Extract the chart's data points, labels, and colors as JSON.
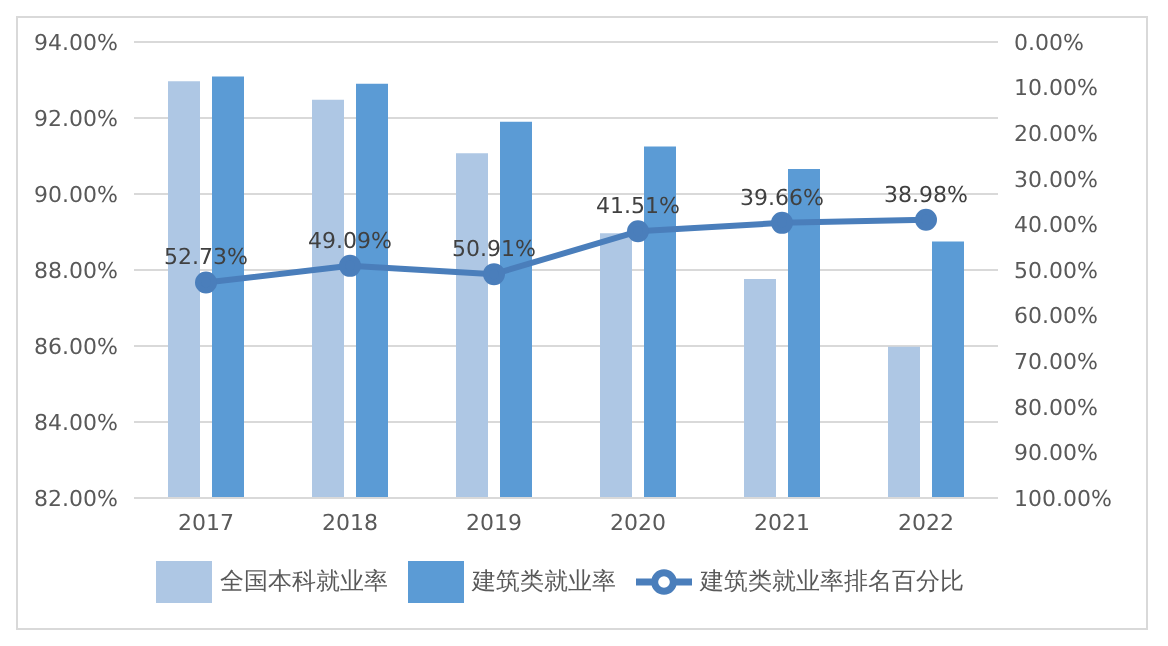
{
  "chart_data": {
    "type": "bar",
    "categories": [
      "2017",
      "2018",
      "2019",
      "2020",
      "2021",
      "2022"
    ],
    "series": [
      {
        "name": "全国本科就业率",
        "color": "#aec7e4",
        "values": [
          92.97,
          92.48,
          91.07,
          88.97,
          87.76,
          85.98
        ]
      },
      {
        "name": "建筑类就业率",
        "color": "#5b9bd5",
        "values": [
          93.09,
          92.9,
          91.9,
          91.25,
          90.66,
          88.75
        ]
      },
      {
        "name": "建筑类就业率排名百分比",
        "type": "line",
        "axis": "y2",
        "color": "#4a7ebb",
        "values": [
          52.73,
          49.09,
          50.91,
          41.51,
          39.66,
          38.98
        ],
        "value_labels": [
          "52.73%",
          "49.09%",
          "50.91%",
          "41.51%",
          "39.66%",
          "38.98%"
        ],
        "marker": "circle",
        "line_style": "solid"
      }
    ],
    "ylim": [
      82,
      94
    ],
    "yticks": [
      {
        "value": 82,
        "label": "82.00%"
      },
      {
        "value": 84,
        "label": "84.00%"
      },
      {
        "value": 86,
        "label": "86.00%"
      },
      {
        "value": 88,
        "label": "88.00%"
      },
      {
        "value": 90,
        "label": "90.00%"
      },
      {
        "value": 92,
        "label": "92.00%"
      },
      {
        "value": 94,
        "label": "94.00%"
      }
    ],
    "y2lim": [
      100,
      0
    ],
    "y2ticks": [
      {
        "value": 0,
        "label": "0.00%"
      },
      {
        "value": 10,
        "label": "10.00%"
      },
      {
        "value": 20,
        "label": "20.00%"
      },
      {
        "value": 30,
        "label": "30.00%"
      },
      {
        "value": 40,
        "label": "40.00%"
      },
      {
        "value": 50,
        "label": "50.00%"
      },
      {
        "value": 60,
        "label": "60.00%"
      },
      {
        "value": 70,
        "label": "70.00%"
      },
      {
        "value": 80,
        "label": "80.00%"
      },
      {
        "value": 90,
        "label": "90.00%"
      },
      {
        "value": 100,
        "label": "100.00%"
      }
    ],
    "grid": "y",
    "legend": "bottom"
  }
}
